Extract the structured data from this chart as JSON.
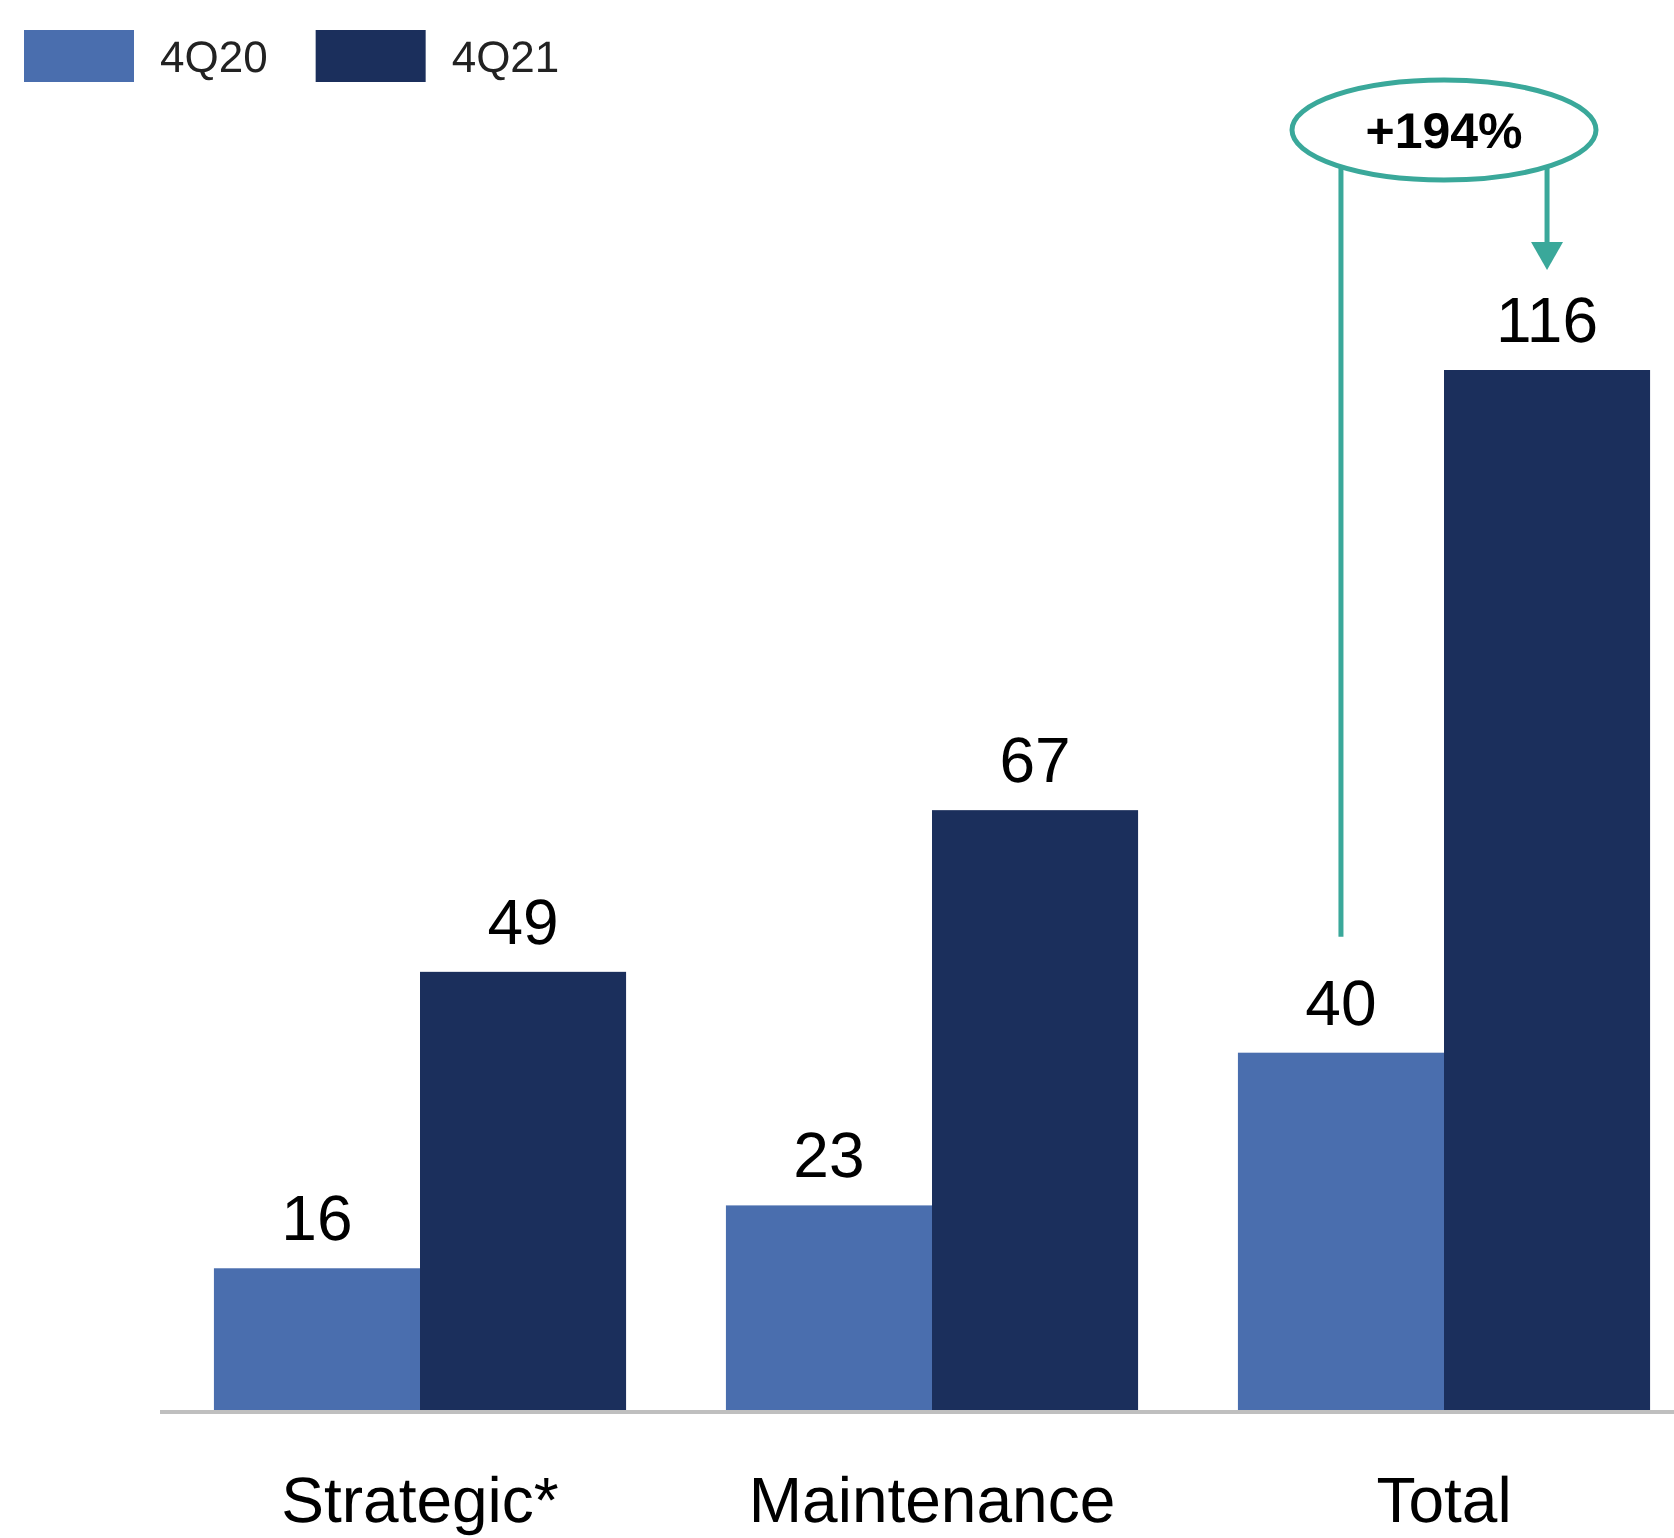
{
  "chart_data": {
    "type": "bar",
    "categories": [
      "Strategic*",
      "Maintenance",
      "Total"
    ],
    "series": [
      {
        "name": "4Q20",
        "color": "#4a6eae",
        "values": [
          16,
          23,
          40
        ]
      },
      {
        "name": "4Q21",
        "color": "#1b2f5c",
        "values": [
          49,
          67,
          116
        ]
      }
    ],
    "tick_labels": "x",
    "data_labels": true,
    "legend": "top left",
    "annotations": [
      "+194%"
    ]
  }
}
